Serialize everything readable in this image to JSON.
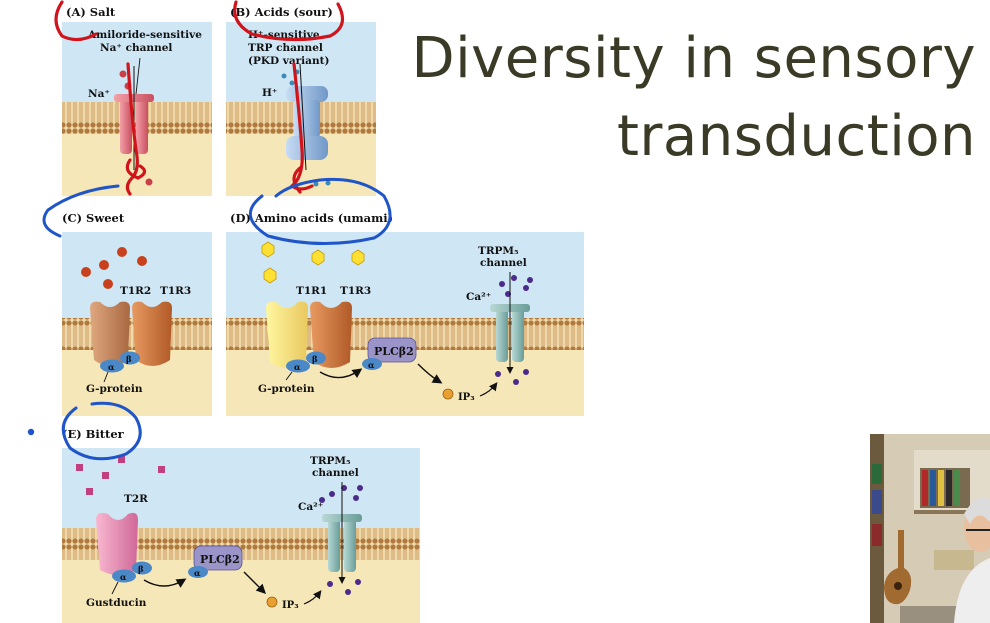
{
  "slide": {
    "title_line1": "Diversity in sensory",
    "title_line2": "transduction"
  },
  "panels": {
    "salt": {
      "heading": "(A) Salt",
      "channel_line1": "Amiloride-sensitive",
      "channel_line2": "Na⁺ channel",
      "ion": "Na⁺"
    },
    "sour": {
      "heading": "(B) Acids (sour)",
      "channel_line1": "H⁺-sensitive",
      "channel_line2": "TRP channel",
      "channel_line3": "(PKD variant)",
      "ion": "H⁺"
    },
    "sweet": {
      "heading": "(C) Sweet",
      "receptor1": "T1R2",
      "receptor2": "T1R3",
      "gprotein": "G-protein"
    },
    "umami": {
      "heading": "(D) Amino acids (umami)",
      "receptor1": "T1R1",
      "receptor2": "T1R3",
      "gprotein": "G-protein",
      "enzyme": "PLCβ2",
      "messenger": "IP₃",
      "channel_line1": "TRPM₅",
      "channel_line2": "channel",
      "ion": "Ca²⁺"
    },
    "bitter": {
      "heading": "(E) Bitter",
      "receptor": "T2R",
      "gprotein": "Gustducin",
      "enzyme": "PLCβ2",
      "messenger": "IP₃",
      "channel_line1": "TRPM₅",
      "channel_line2": "channel",
      "ion": "Ca²⁺"
    }
  },
  "subunits": {
    "alpha": "α",
    "beta": "β"
  },
  "colors": {
    "accent": "#3a3a26",
    "cytoplasm": "#f5e7b8",
    "extracellular": "#cfe6f4",
    "membrane": "#b88a55",
    "annotation_red": "#d0141c",
    "annotation_blue": "#1f55c8"
  },
  "webcam": {
    "icon": "presenter-video"
  }
}
